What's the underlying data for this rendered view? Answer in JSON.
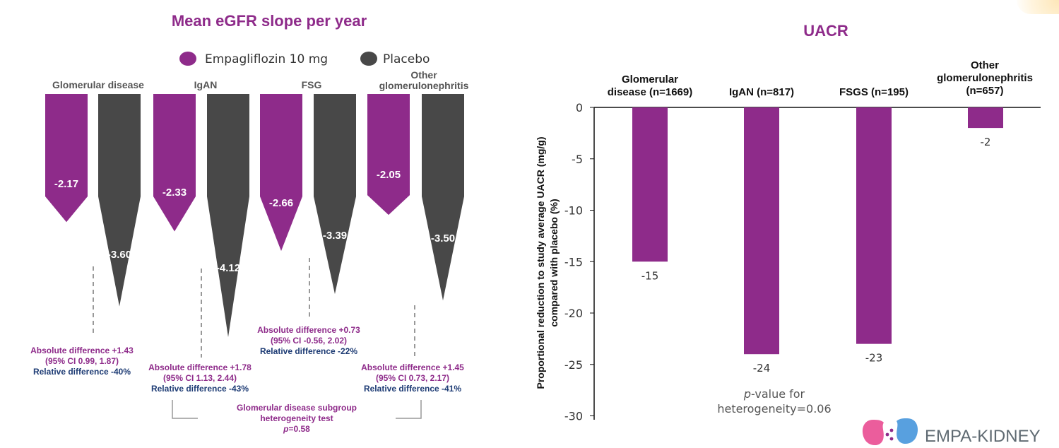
{
  "chart_data": [
    {
      "type": "bar",
      "title": "Mean eGFR slope per year",
      "legend": [
        {
          "name": "Empagliflozin 10 mg",
          "color": "#8e2b8a"
        },
        {
          "name": "Placebo",
          "color": "#484848"
        }
      ],
      "legend_position": "top",
      "categories": [
        {
          "label_lines": [
            "Glomerular disease"
          ]
        },
        {
          "label_lines": [
            "IgAN"
          ]
        },
        {
          "label_lines": [
            "FSG"
          ]
        },
        {
          "label_lines": [
            "Other",
            "glomerulonephritis"
          ]
        }
      ],
      "series": [
        {
          "name": "Empagliflozin 10 mg",
          "values": [
            -2.17,
            -2.33,
            -2.66,
            -2.05
          ],
          "labels": [
            "-2.17",
            "-2.33",
            "-2.66",
            "-2.05"
          ]
        },
        {
          "name": "Placebo",
          "values": [
            -3.6,
            -4.12,
            -3.39,
            -3.5
          ],
          "labels": [
            "-3.60",
            "-4.12",
            "-3.39",
            "-3.50"
          ]
        }
      ],
      "annotations": [
        {
          "abs": "Absolute difference +1.43",
          "ci": "(95% CI 0.99, 1.87)",
          "rel": "Relative difference -40%"
        },
        {
          "abs": "Absolute difference +1.78",
          "ci": "(95% CI 1.13, 2.44)",
          "rel": "Relative difference -43%"
        },
        {
          "abs": "Absolute difference +0.73",
          "ci": "(95% CI -0.56, 2.02)",
          "rel": "Relative difference -22%"
        },
        {
          "abs": "Absolute difference +1.45",
          "ci": "(95% CI 0.73, 2.17)",
          "rel": "Relative difference -41%"
        }
      ],
      "heterogeneity": {
        "line1": "Glomerular disease subgroup",
        "line2": "heterogeneity test",
        "p_label": "p",
        "p_value": "=0.58"
      }
    },
    {
      "type": "bar",
      "title": "UACR",
      "ylabel_lines": [
        "Proportional reduction to study average UACR (mg/g)",
        "compared with placebo (%)"
      ],
      "ylim": [
        -30,
        0
      ],
      "yticks": [
        0,
        -5,
        -10,
        -15,
        -20,
        -25,
        -30
      ],
      "categories": [
        {
          "label_lines": [
            "Glomerular",
            "disease (n=1669)"
          ]
        },
        {
          "label_lines": [
            "IgAN (n=817)"
          ]
        },
        {
          "label_lines": [
            "FSGS (n=195)"
          ]
        },
        {
          "label_lines": [
            "Other",
            "glomerulonephritis",
            "(n=657)"
          ]
        }
      ],
      "values": [
        -15,
        -24,
        -23,
        -2
      ],
      "value_labels": [
        "-15",
        "-24",
        "-23",
        "-2"
      ],
      "bar_color": "#8e2b8a",
      "annotation": {
        "p_label": "p",
        "line1_rest": "-value for",
        "line2": "heterogeneity=0.06"
      }
    }
  ],
  "logo": {
    "text": "EMPA-KIDNEY"
  }
}
